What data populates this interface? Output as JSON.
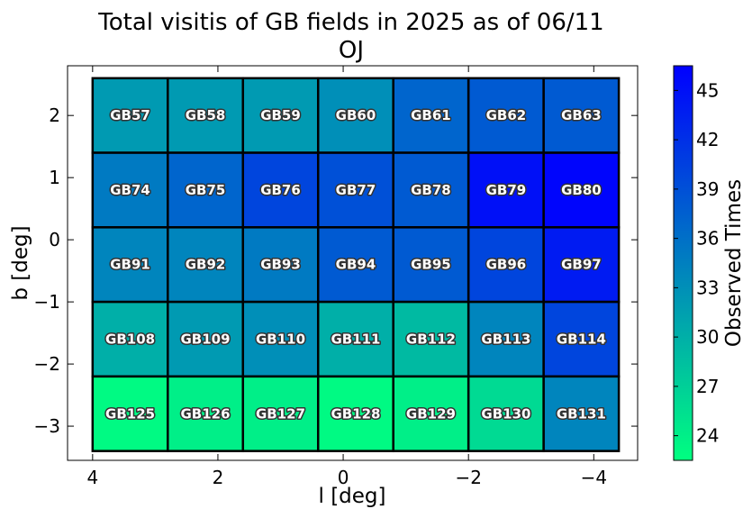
{
  "chart_data": {
    "type": "heatmap",
    "title": "Total visitis of GB fields in 2025 as of 06/11",
    "subtitle": "OJ",
    "xlabel": "l [deg]",
    "ylabel": "b [deg]",
    "colorbar_label": "Observed Times",
    "x_ticks": [
      4,
      2,
      0,
      -2,
      -4
    ],
    "x_tick_labels": [
      "4",
      "2",
      "0",
      "−2",
      "−4"
    ],
    "xlim": [
      4.4,
      -4.7
    ],
    "y_ticks": [
      2,
      1,
      0,
      -1,
      -2,
      -3
    ],
    "y_tick_labels": [
      "2",
      "1",
      "0",
      "−1",
      "−2",
      "−3"
    ],
    "ylim": [
      -3.55,
      2.8
    ],
    "colorbar_ticks": [
      24,
      27,
      30,
      33,
      36,
      39,
      42,
      45
    ],
    "colorbar_range": [
      22.5,
      46.5
    ],
    "colormap": "winter",
    "grid": false,
    "cells": [
      {
        "name": "GB57",
        "l": 3.4,
        "b": 2.0,
        "value": 32
      },
      {
        "name": "GB58",
        "l": 2.2,
        "b": 2.0,
        "value": 32
      },
      {
        "name": "GB59",
        "l": 1.0,
        "b": 2.0,
        "value": 32
      },
      {
        "name": "GB60",
        "l": -0.2,
        "b": 2.0,
        "value": 33
      },
      {
        "name": "GB61",
        "l": -1.4,
        "b": 2.0,
        "value": 37
      },
      {
        "name": "GB62",
        "l": -2.6,
        "b": 2.0,
        "value": 38
      },
      {
        "name": "GB63",
        "l": -3.8,
        "b": 2.0,
        "value": 38
      },
      {
        "name": "GB74",
        "l": 3.4,
        "b": 0.8,
        "value": 35
      },
      {
        "name": "GB75",
        "l": 2.2,
        "b": 0.8,
        "value": 37
      },
      {
        "name": "GB76",
        "l": 1.0,
        "b": 0.8,
        "value": 40
      },
      {
        "name": "GB77",
        "l": -0.2,
        "b": 0.8,
        "value": 39
      },
      {
        "name": "GB78",
        "l": -1.4,
        "b": 0.8,
        "value": 38
      },
      {
        "name": "GB79",
        "l": -2.6,
        "b": 0.8,
        "value": 45
      },
      {
        "name": "GB80",
        "l": -3.8,
        "b": 0.8,
        "value": 46
      },
      {
        "name": "GB91",
        "l": 3.4,
        "b": -0.4,
        "value": 34
      },
      {
        "name": "GB92",
        "l": 2.2,
        "b": -0.4,
        "value": 34
      },
      {
        "name": "GB93",
        "l": 1.0,
        "b": -0.4,
        "value": 35
      },
      {
        "name": "GB94",
        "l": -0.2,
        "b": -0.4,
        "value": 38
      },
      {
        "name": "GB95",
        "l": -1.4,
        "b": -0.4,
        "value": 38
      },
      {
        "name": "GB96",
        "l": -2.6,
        "b": -0.4,
        "value": 40
      },
      {
        "name": "GB97",
        "l": -3.8,
        "b": -0.4,
        "value": 44
      },
      {
        "name": "GB108",
        "l": 3.4,
        "b": -1.6,
        "value": 30
      },
      {
        "name": "GB109",
        "l": 2.2,
        "b": -1.6,
        "value": 32
      },
      {
        "name": "GB110",
        "l": 1.0,
        "b": -1.6,
        "value": 33
      },
      {
        "name": "GB111",
        "l": -0.2,
        "b": -1.6,
        "value": 30
      },
      {
        "name": "GB112",
        "l": -1.4,
        "b": -1.6,
        "value": 29
      },
      {
        "name": "GB113",
        "l": -2.6,
        "b": -1.6,
        "value": 34
      },
      {
        "name": "GB114",
        "l": -3.8,
        "b": -1.6,
        "value": 40
      },
      {
        "name": "GB125",
        "l": 3.4,
        "b": -2.8,
        "value": 23
      },
      {
        "name": "GB126",
        "l": 2.2,
        "b": -2.8,
        "value": 24
      },
      {
        "name": "GB127",
        "l": 1.0,
        "b": -2.8,
        "value": 24
      },
      {
        "name": "GB128",
        "l": -0.2,
        "b": -2.8,
        "value": 23
      },
      {
        "name": "GB129",
        "l": -1.4,
        "b": -2.8,
        "value": 24
      },
      {
        "name": "GB130",
        "l": -2.6,
        "b": -2.8,
        "value": 26
      },
      {
        "name": "GB131",
        "l": -3.8,
        "b": -2.8,
        "value": 34
      }
    ]
  }
}
